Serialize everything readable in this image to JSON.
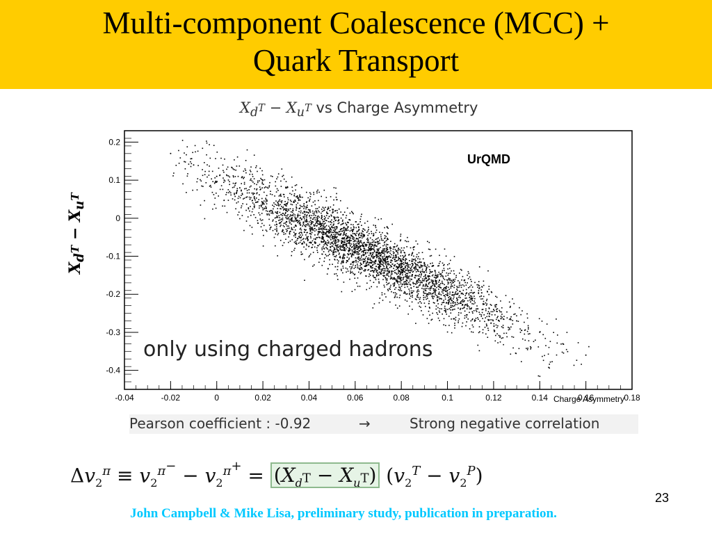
{
  "slide": {
    "title_line1": "Multi-component Coalescence (MCC) +",
    "title_line2": "Quark Transport",
    "page_number": "23",
    "footer": "John Campbell & Mike Lisa, preliminary study, publication in preparation.",
    "colors": {
      "title_bar": "#ffcc00",
      "footer_text": "#00c8ff",
      "highlight": "#e6f4e6"
    }
  },
  "plot": {
    "title_vs": "vs Charge Asymmetry",
    "ylabel": "X_{d^T} − X_{u^T}",
    "model_label": "UrQMD",
    "annotation": "only using charged hadrons",
    "pearson": "Pearson coefficient : -0.92",
    "arrow": "→",
    "correlation": "Strong negative correlation"
  },
  "formula": {
    "lhs": "Δv₂^π ≡ v₂^{π⁻} − v₂^{π⁺} = (X_{d^T} − X_{u^T})(v₂^T − v₂^P)"
  },
  "chart_data": {
    "type": "scatter",
    "title": "X_{d^T} − X_{u^T} vs Charge Asymmetry",
    "xlabel": "Charge Asymmetry",
    "ylabel": "X_{d^T} − X_{u^T}",
    "xlim": [
      -0.04,
      0.18
    ],
    "ylim": [
      -0.45,
      0.23
    ],
    "x_ticks": [
      "-0.04",
      "-0.02",
      "0",
      "0.02",
      "0.04",
      "0.06",
      "0.08",
      "0.1",
      "0.12",
      "0.14",
      "0.16",
      "0.18"
    ],
    "y_ticks": [
      "0.2",
      "0.1",
      "0",
      "-0.1",
      "-0.2",
      "-0.3",
      "-0.4"
    ],
    "series": [
      {
        "name": "UrQMD",
        "marker": "dot",
        "color": "#000000",
        "trend": {
          "slope": -2.95,
          "intercept": 0.1,
          "spread": 0.04,
          "x_range": [
            -0.02,
            0.165
          ]
        },
        "x": [
          -0.02,
          -0.01,
          0.0,
          0.01,
          0.02,
          0.03,
          0.04,
          0.05,
          0.06,
          0.07,
          0.08,
          0.09,
          0.1,
          0.11,
          0.12,
          0.13,
          0.14,
          0.15,
          0.16
        ],
        "y": [
          0.17,
          0.14,
          0.11,
          0.08,
          0.04,
          0.02,
          -0.02,
          -0.05,
          -0.08,
          -0.1,
          -0.13,
          -0.16,
          -0.19,
          -0.22,
          -0.24,
          -0.27,
          -0.3,
          -0.33,
          -0.36
        ]
      }
    ],
    "correlation": -0.92,
    "grid": false
  }
}
